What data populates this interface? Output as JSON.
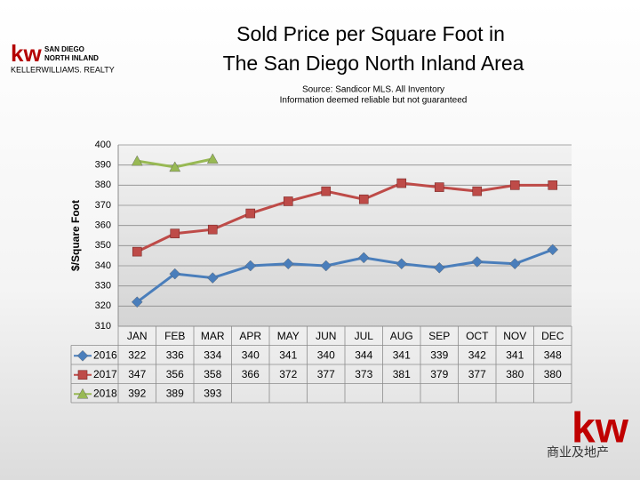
{
  "logo": {
    "mark": "kw",
    "line1": "SAN DIEGO",
    "line2": "NORTH INLAND",
    "line3": "KELLERWILLIAMS. REALTY"
  },
  "corner_logo": "kw",
  "watermark": "商业及地产",
  "chart_data": {
    "type": "line",
    "title": [
      "Sold Price per Square Foot in",
      "The San Diego North Inland Area"
    ],
    "subtitle": [
      "Source: Sandicor MLS. All Inventory",
      "Information deemed reliable but not guaranteed"
    ],
    "y_label": "$/Square Foot",
    "categories": [
      "JAN",
      "FEB",
      "MAR",
      "APR",
      "MAY",
      "JUN",
      "JUL",
      "AUG",
      "SEP",
      "OCT",
      "NOV",
      "DEC"
    ],
    "series": [
      {
        "name": "2016",
        "color": "#4a7ebb",
        "marker": "diamond",
        "values": [
          322,
          336,
          334,
          340,
          341,
          340,
          344,
          341,
          339,
          342,
          341,
          348
        ]
      },
      {
        "name": "2017",
        "color": "#be4b48",
        "marker": "square",
        "values": [
          347,
          356,
          358,
          366,
          372,
          377,
          373,
          381,
          379,
          377,
          380,
          380
        ]
      },
      {
        "name": "2018",
        "color": "#98b954",
        "marker": "triangle",
        "values": [
          392,
          389,
          393,
          null,
          null,
          null,
          null,
          null,
          null,
          null,
          null,
          null
        ]
      }
    ],
    "ylim": [
      310,
      400
    ],
    "yticks": [
      310,
      320,
      330,
      340,
      350,
      360,
      370,
      380,
      390,
      400
    ],
    "grid": true,
    "data_table": true
  }
}
